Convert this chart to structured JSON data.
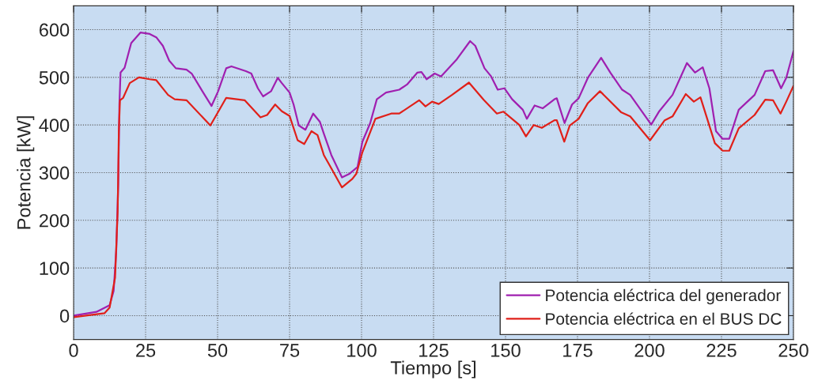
{
  "chart_data": {
    "type": "line",
    "xlabel": "Tiempo [s]",
    "ylabel": "Potencia [kW]",
    "xlim": [
      0,
      250
    ],
    "ylim": [
      -50,
      650
    ],
    "xticks": [
      0,
      25,
      50,
      75,
      100,
      125,
      150,
      175,
      200,
      225,
      250
    ],
    "yticks": [
      0,
      100,
      200,
      300,
      400,
      500,
      600
    ],
    "grid": true,
    "legend": "bottom right",
    "marker": "none",
    "line_style": "solid",
    "series": [
      {
        "name": "Potencia eléctrica del generador",
        "color": "#a020b0",
        "x": [
          0,
          7.9,
          12.5,
          13.9,
          14.8,
          15.5,
          15.9,
          16.3,
          17.7,
          20,
          23.2,
          26.4,
          28.7,
          31,
          33.2,
          35.5,
          39.2,
          41,
          44.7,
          47.9,
          50.2,
          53,
          54.8,
          59.8,
          61.7,
          64,
          65.8,
          68.6,
          70.9,
          72.3,
          75,
          76.4,
          78.2,
          80.5,
          83.2,
          85.5,
          86.9,
          89.5,
          93.2,
          95.9,
          98.6,
          100.3,
          103,
          105.3,
          108.5,
          113.1,
          115.8,
          119.4,
          120.8,
          122.6,
          125.4,
          127.6,
          133.1,
          137.7,
          139.5,
          142.7,
          145,
          147.3,
          149.6,
          152.3,
          156,
          157.4,
          160.1,
          162.9,
          167,
          167.8,
          170.5,
          173.1,
          175.4,
          178.6,
          183.2,
          186.4,
          190.5,
          193.3,
          200.6,
          203.4,
          208,
          213,
          215.8,
          218.5,
          220.8,
          223.1,
          225.4,
          227.7,
          231,
          236.5,
          240.2,
          242.9,
          245.7,
          247.5,
          250
        ],
        "values": [
          0,
          8,
          22,
          52,
          136,
          276,
          443,
          510,
          520,
          572,
          594,
          591,
          584,
          566,
          535,
          519,
          516,
          508,
          471,
          440,
          471,
          519,
          523,
          513,
          508,
          477,
          460,
          471,
          499,
          488,
          468,
          443,
          399,
          390,
          424,
          407,
          382,
          337,
          290,
          298,
          312,
          365,
          404,
          454,
          468,
          474,
          485,
          510,
          511,
          496,
          508,
          502,
          538,
          576,
          566,
          519,
          502,
          474,
          477,
          454,
          432,
          413,
          441,
          435,
          454,
          456,
          404,
          443,
          456,
          499,
          541,
          510,
          474,
          463,
          401,
          429,
          463,
          530,
          510,
          521,
          477,
          387,
          371,
          371,
          432,
          463,
          513,
          515,
          477,
          499,
          555
        ]
      },
      {
        "name": "Potencia eléctrica en el BUS DC",
        "color": "#e0201a",
        "x": [
          0,
          10.7,
          12.5,
          14.4,
          15.3,
          15.7,
          16.1,
          17.2,
          19.5,
          22.7,
          26.4,
          28.7,
          32.8,
          35.1,
          39.2,
          47.5,
          53,
          59.4,
          64.9,
          67.2,
          70,
          72.3,
          75,
          77.8,
          80.1,
          82.6,
          84.7,
          86.9,
          89.5,
          93.2,
          96.8,
          98.2,
          100.3,
          104.8,
          110.3,
          113.1,
          120,
          122.2,
          124.5,
          126.8,
          131.4,
          137.3,
          142.4,
          147,
          149.3,
          154.8,
          157.1,
          159.8,
          162.6,
          167,
          167.8,
          170.4,
          172.3,
          175.4,
          178.6,
          182.8,
          190.1,
          193.3,
          200.2,
          205.3,
          208,
          212.6,
          215.4,
          217.7,
          222.7,
          225.4,
          227.7,
          231,
          236.5,
          240.2,
          242.9,
          245.5,
          247.5,
          250
        ],
        "values": [
          -3,
          5,
          17,
          80,
          219,
          387,
          452,
          457,
          488,
          500,
          496,
          494,
          463,
          454,
          452,
          399,
          457,
          452,
          416,
          421,
          443,
          429,
          419,
          368,
          360,
          387,
          379,
          337,
          309,
          269,
          287,
          298,
          343,
          413,
          424,
          424,
          452,
          439,
          449,
          444,
          463,
          489,
          453,
          424,
          428,
          400,
          376,
          400,
          394,
          410,
          410,
          365,
          399,
          413,
          446,
          471,
          427,
          418,
          368,
          410,
          418,
          465,
          449,
          458,
          362,
          346,
          346,
          393,
          421,
          453,
          452,
          424,
          449,
          482
        ]
      }
    ]
  }
}
